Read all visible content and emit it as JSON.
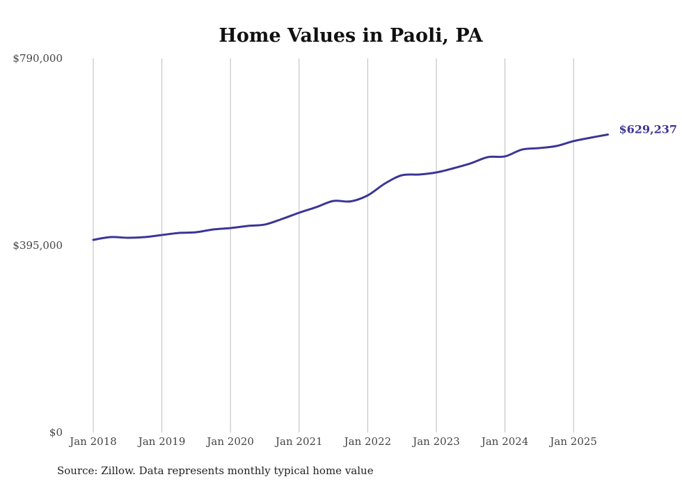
{
  "chart_data": {
    "type": "line",
    "title": "Home Values in Paoli, PA",
    "xlabel": "",
    "ylabel": "",
    "ylim": [
      0,
      790000
    ],
    "yticks": [
      0,
      395000,
      790000
    ],
    "ytick_labels": [
      "$0",
      "$395,000",
      "$790,000"
    ],
    "xticks": [
      2018,
      2019,
      2020,
      2021,
      2022,
      2023,
      2024,
      2025
    ],
    "xtick_labels": [
      "Jan 2018",
      "Jan 2019",
      "Jan 2020",
      "Jan 2021",
      "Jan 2022",
      "Jan 2023",
      "Jan 2024",
      "Jan 2025"
    ],
    "xlim": [
      2018,
      2025.5
    ],
    "grid": "vertical",
    "series": [
      {
        "name": "Typical home value",
        "color": "#3b3596",
        "x": [
          2018,
          2018.25,
          2018.5,
          2018.75,
          2019,
          2019.25,
          2019.5,
          2019.75,
          2020,
          2020.25,
          2020.5,
          2020.75,
          2021,
          2021.25,
          2021.5,
          2021.75,
          2022,
          2022.25,
          2022.5,
          2022.75,
          2023,
          2023.25,
          2023.5,
          2023.75,
          2024,
          2024.25,
          2024.5,
          2024.75,
          2025,
          2025.25,
          2025.5
        ],
        "values": [
          406750,
          412600,
          411200,
          412600,
          417000,
          421400,
          422900,
          428800,
          431700,
          436100,
          439100,
          450800,
          464000,
          475800,
          489000,
          488000,
          500700,
          525700,
          543300,
          544800,
          549200,
          558000,
          568300,
          581500,
          583000,
          597600,
          600600,
          605000,
          615300,
          622600,
          629237
        ]
      }
    ],
    "end_label": "$629,237"
  },
  "source": "Source: Zillow. Data represents monthly typical home value"
}
